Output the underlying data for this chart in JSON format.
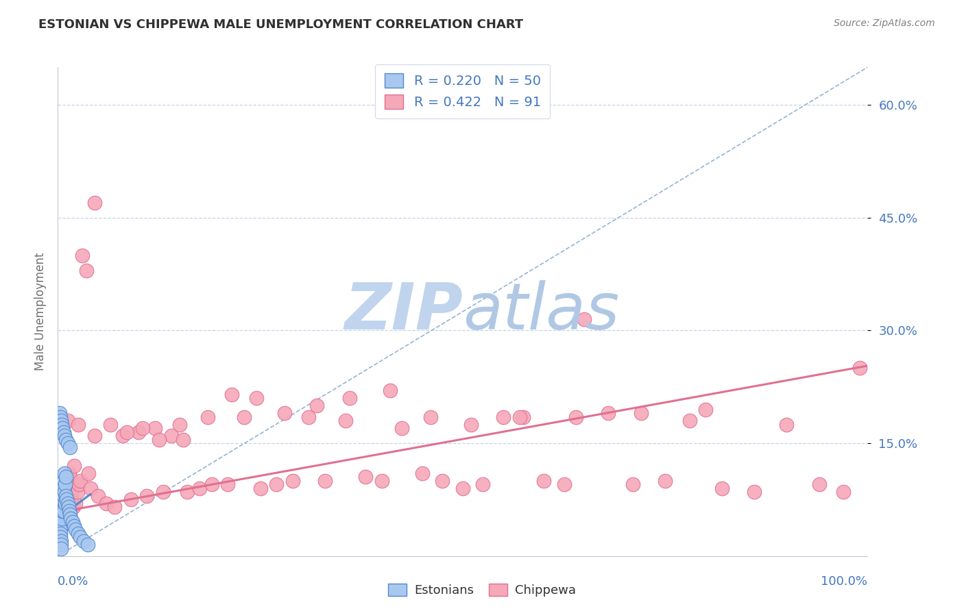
{
  "title": "ESTONIAN VS CHIPPEWA MALE UNEMPLOYMENT CORRELATION CHART",
  "source": "Source: ZipAtlas.com",
  "ylabel": "Male Unemployment",
  "xmin": 0.0,
  "xmax": 1.0,
  "ymin": 0.0,
  "ymax": 0.65,
  "yticks": [
    0.15,
    0.3,
    0.45,
    0.6
  ],
  "ytick_labels": [
    "15.0%",
    "30.0%",
    "45.0%",
    "60.0%"
  ],
  "estonian_R": 0.22,
  "estonian_N": 50,
  "chippewa_R": 0.422,
  "chippewa_N": 91,
  "estonian_color": "#a8c8f0",
  "chippewa_color": "#f5a8b8",
  "estonian_edge": "#5588cc",
  "chippewa_edge": "#e07090",
  "trend_estonian_color": "#5588cc",
  "trend_chippewa_color": "#e07090",
  "ref_line_color": "#8aaad0",
  "background_color": "#ffffff",
  "grid_color": "#c8d4e8",
  "watermark_color": "#d0ddef",
  "legend_text_color": "#4478c0",
  "bottom_legend_color": "#333333",
  "figsize": [
    14.06,
    8.92
  ],
  "dpi": 100,
  "chippewa_x": [
    0.003,
    0.005,
    0.006,
    0.007,
    0.008,
    0.009,
    0.01,
    0.011,
    0.012,
    0.013,
    0.014,
    0.015,
    0.016,
    0.017,
    0.018,
    0.019,
    0.02,
    0.022,
    0.024,
    0.026,
    0.028,
    0.03,
    0.035,
    0.038,
    0.04,
    0.045,
    0.05,
    0.06,
    0.07,
    0.08,
    0.09,
    0.1,
    0.11,
    0.12,
    0.13,
    0.14,
    0.15,
    0.16,
    0.175,
    0.19,
    0.21,
    0.23,
    0.25,
    0.27,
    0.29,
    0.31,
    0.33,
    0.355,
    0.38,
    0.4,
    0.425,
    0.45,
    0.475,
    0.5,
    0.525,
    0.55,
    0.575,
    0.6,
    0.625,
    0.65,
    0.68,
    0.71,
    0.75,
    0.78,
    0.82,
    0.86,
    0.9,
    0.94,
    0.97,
    0.99,
    0.012,
    0.025,
    0.045,
    0.065,
    0.085,
    0.105,
    0.125,
    0.155,
    0.185,
    0.215,
    0.245,
    0.28,
    0.32,
    0.36,
    0.41,
    0.46,
    0.51,
    0.57,
    0.64,
    0.72,
    0.8
  ],
  "chippewa_y": [
    0.08,
    0.07,
    0.09,
    0.075,
    0.065,
    0.06,
    0.055,
    0.1,
    0.085,
    0.095,
    0.11,
    0.105,
    0.075,
    0.08,
    0.09,
    0.065,
    0.12,
    0.07,
    0.085,
    0.095,
    0.1,
    0.4,
    0.38,
    0.11,
    0.09,
    0.47,
    0.08,
    0.07,
    0.065,
    0.16,
    0.075,
    0.165,
    0.08,
    0.17,
    0.085,
    0.16,
    0.175,
    0.085,
    0.09,
    0.095,
    0.095,
    0.185,
    0.09,
    0.095,
    0.1,
    0.185,
    0.1,
    0.18,
    0.105,
    0.1,
    0.17,
    0.11,
    0.1,
    0.09,
    0.095,
    0.185,
    0.185,
    0.1,
    0.095,
    0.315,
    0.19,
    0.095,
    0.1,
    0.18,
    0.09,
    0.085,
    0.175,
    0.095,
    0.085,
    0.25,
    0.18,
    0.175,
    0.16,
    0.175,
    0.165,
    0.17,
    0.155,
    0.155,
    0.185,
    0.215,
    0.21,
    0.19,
    0.2,
    0.21,
    0.22,
    0.185,
    0.175,
    0.185,
    0.185,
    0.19,
    0.195
  ],
  "estonian_x": [
    0.001,
    0.001,
    0.002,
    0.002,
    0.002,
    0.003,
    0.003,
    0.003,
    0.004,
    0.004,
    0.004,
    0.005,
    0.005,
    0.005,
    0.005,
    0.006,
    0.006,
    0.006,
    0.007,
    0.007,
    0.007,
    0.008,
    0.008,
    0.009,
    0.009,
    0.01,
    0.01,
    0.011,
    0.012,
    0.013,
    0.014,
    0.015,
    0.016,
    0.018,
    0.02,
    0.022,
    0.025,
    0.028,
    0.032,
    0.037,
    0.002,
    0.003,
    0.004,
    0.005,
    0.006,
    0.007,
    0.008,
    0.01,
    0.012,
    0.015
  ],
  "estonian_y": [
    0.06,
    0.055,
    0.05,
    0.045,
    0.04,
    0.035,
    0.03,
    0.025,
    0.02,
    0.015,
    0.01,
    0.08,
    0.07,
    0.06,
    0.05,
    0.09,
    0.075,
    0.06,
    0.1,
    0.08,
    0.06,
    0.11,
    0.085,
    0.095,
    0.07,
    0.105,
    0.08,
    0.075,
    0.07,
    0.065,
    0.06,
    0.055,
    0.05,
    0.045,
    0.04,
    0.035,
    0.03,
    0.025,
    0.02,
    0.015,
    0.19,
    0.185,
    0.18,
    0.175,
    0.17,
    0.165,
    0.16,
    0.155,
    0.15,
    0.145
  ]
}
